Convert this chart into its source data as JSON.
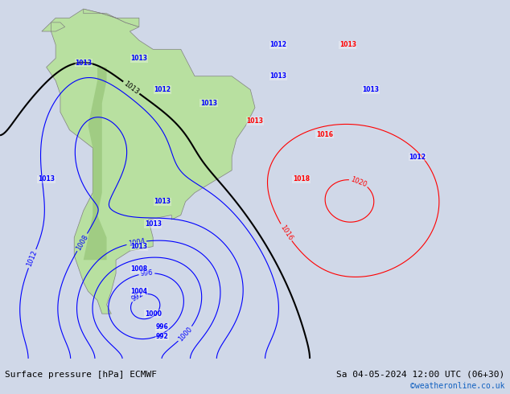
{
  "title_left": "Surface pressure [hPa] ECMWF",
  "title_right": "Sa 04-05-2024 12:00 UTC (06+30)",
  "credit": "©weatheronline.co.uk",
  "bg_color": "#d0d8e8",
  "land_color": "#b8e0a0",
  "fig_width": 6.34,
  "fig_height": 4.9,
  "dpi": 100
}
